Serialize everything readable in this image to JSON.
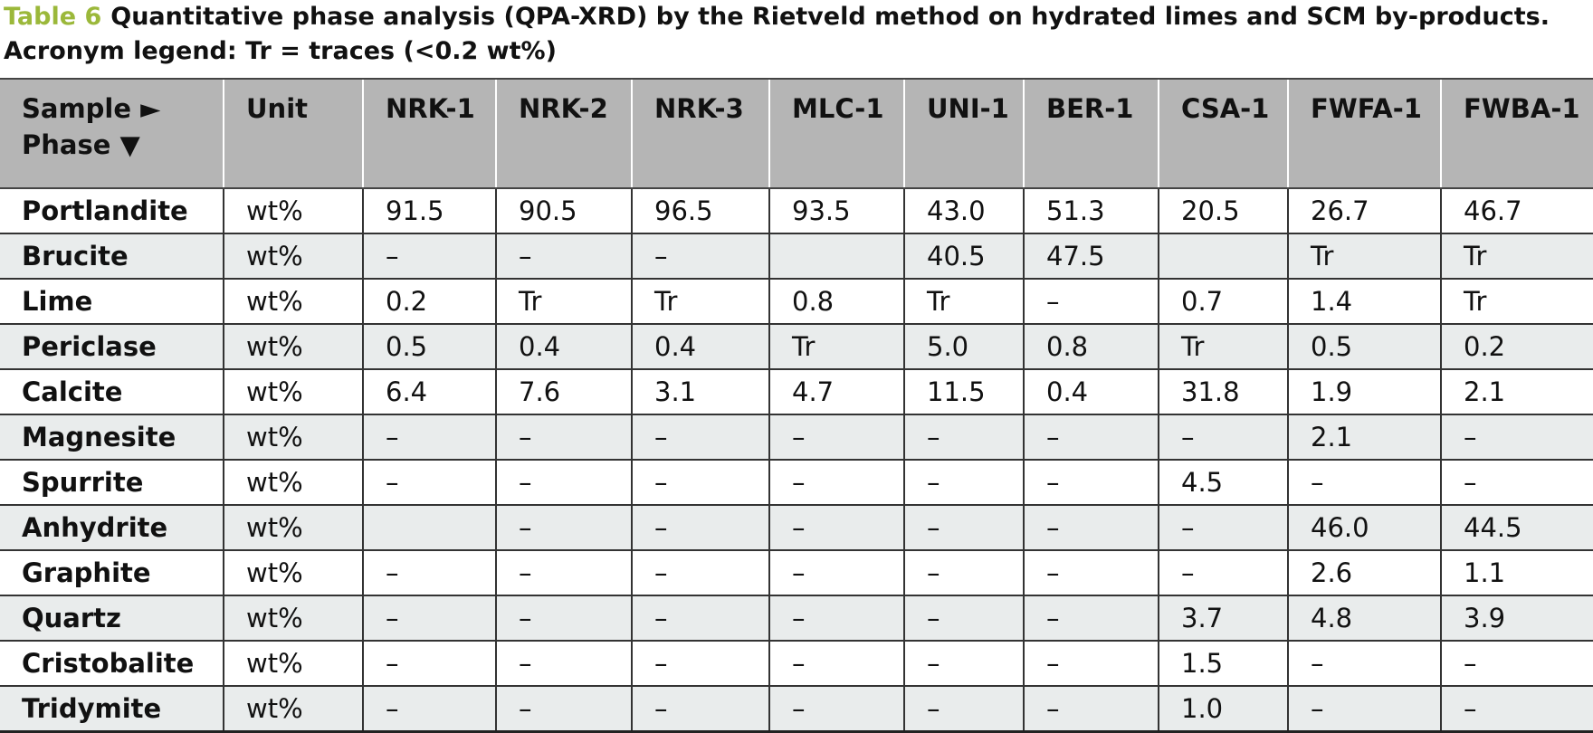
{
  "caption": {
    "label": "Table 6",
    "text": "Quantitative phase analysis (QPA-XRD) by the Rietveld method on hydrated limes and SCM by-products. Acronym legend: Tr = traces (<0.2 wt%)"
  },
  "table": {
    "header": [
      "Sample ►",
      "Phase ▼",
      "Unit",
      "NRK-1",
      "NRK-2",
      "NRK-3",
      "MLC-1",
      "UNI-1",
      "BER-1",
      "CSA-1",
      "FWFA-1",
      "FWBA-1"
    ],
    "rows": [
      [
        "Portlandite",
        "wt%",
        "91.5",
        "90.5",
        "96.5",
        "93.5",
        "43.0",
        "51.3",
        "20.5",
        "26.7",
        "46.7"
      ],
      [
        "Brucite",
        "wt%",
        "–",
        "–",
        "–",
        null,
        "40.5",
        "47.5",
        null,
        "Tr",
        "Tr"
      ],
      [
        "Lime",
        "wt%",
        "0.2",
        "Tr",
        "Tr",
        "0.8",
        "Tr",
        "–",
        "0.7",
        "1.4",
        "Tr"
      ],
      [
        "Periclase",
        "wt%",
        "0.5",
        "0.4",
        "0.4",
        "Tr",
        "5.0",
        "0.8",
        "Tr",
        "0.5",
        "0.2"
      ],
      [
        "Calcite",
        "wt%",
        "6.4",
        "7.6",
        "3.1",
        "4.7",
        "11.5",
        "0.4",
        "31.8",
        "1.9",
        "2.1"
      ],
      [
        "Magnesite",
        "wt%",
        "–",
        "–",
        "–",
        "–",
        "–",
        "–",
        "–",
        "2.1",
        "–"
      ],
      [
        "Spurrite",
        "wt%",
        "–",
        "–",
        "–",
        "–",
        "–",
        "–",
        "4.5",
        "–",
        "–"
      ],
      [
        "Anhydrite",
        "wt%",
        null,
        "–",
        "–",
        "–",
        "–",
        "–",
        "–",
        "46.0",
        "44.5"
      ],
      [
        "Graphite",
        "wt%",
        "–",
        "–",
        "–",
        "–",
        "–",
        "–",
        "–",
        "2.6",
        "1.1"
      ],
      [
        "Quartz",
        "wt%",
        "–",
        "–",
        "–",
        "–",
        "–",
        "–",
        "3.7",
        "4.8",
        "3.9"
      ],
      [
        "Cristobalite",
        "wt%",
        "–",
        "–",
        "–",
        "–",
        "–",
        "–",
        "1.5",
        "–",
        "–"
      ],
      [
        "Tridymite",
        "wt%",
        "–",
        "–",
        "–",
        "–",
        "–",
        "–",
        "1.0",
        "–",
        "–"
      ]
    ]
  }
}
